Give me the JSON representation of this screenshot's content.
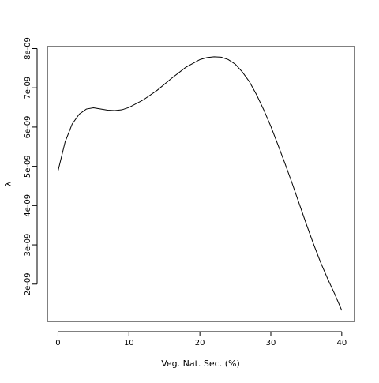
{
  "chart_data": {
    "type": "line",
    "title": "",
    "xlabel": "Veg. Nat. Sec. (%)",
    "ylabel": "λ",
    "xlim": [
      -1.5,
      41.8
    ],
    "ylim": [
      1.05e-09,
      8.05e-09
    ],
    "xticks": [
      0,
      10,
      20,
      30,
      40
    ],
    "xtick_labels": [
      "0",
      "10",
      "20",
      "30",
      "40"
    ],
    "yticks": [
      2e-09,
      3e-09,
      4e-09,
      5e-09,
      6e-09,
      7e-09,
      8e-09
    ],
    "ytick_labels": [
      "2e-09",
      "3e-09",
      "4e-09",
      "5e-09",
      "6e-09",
      "7e-09",
      "8e-09"
    ],
    "grid": false,
    "legend": "none",
    "series": [
      {
        "color": "#000000",
        "x": [
          0,
          1,
          2,
          3,
          4,
          5,
          6,
          7,
          8,
          9,
          10,
          12,
          14,
          16,
          18,
          20,
          21,
          22,
          23,
          24,
          25,
          26,
          27,
          28,
          29,
          30,
          31,
          32,
          33,
          34,
          35,
          36,
          37,
          38,
          39,
          40
        ],
        "y": [
          4.88e-09,
          5.62e-09,
          6.08e-09,
          6.33e-09,
          6.46e-09,
          6.49e-09,
          6.46e-09,
          6.43e-09,
          6.42e-09,
          6.44e-09,
          6.5e-09,
          6.69e-09,
          6.94e-09,
          7.24e-09,
          7.52e-09,
          7.72e-09,
          7.77e-09,
          7.79e-09,
          7.78e-09,
          7.72e-09,
          7.6e-09,
          7.4e-09,
          7.15e-09,
          6.82e-09,
          6.44e-09,
          6.02e-09,
          5.55e-09,
          5.07e-09,
          4.57e-09,
          4.05e-09,
          3.53e-09,
          3.03e-09,
          2.56e-09,
          2.14e-09,
          1.75e-09,
          1.33e-09
        ]
      }
    ]
  }
}
